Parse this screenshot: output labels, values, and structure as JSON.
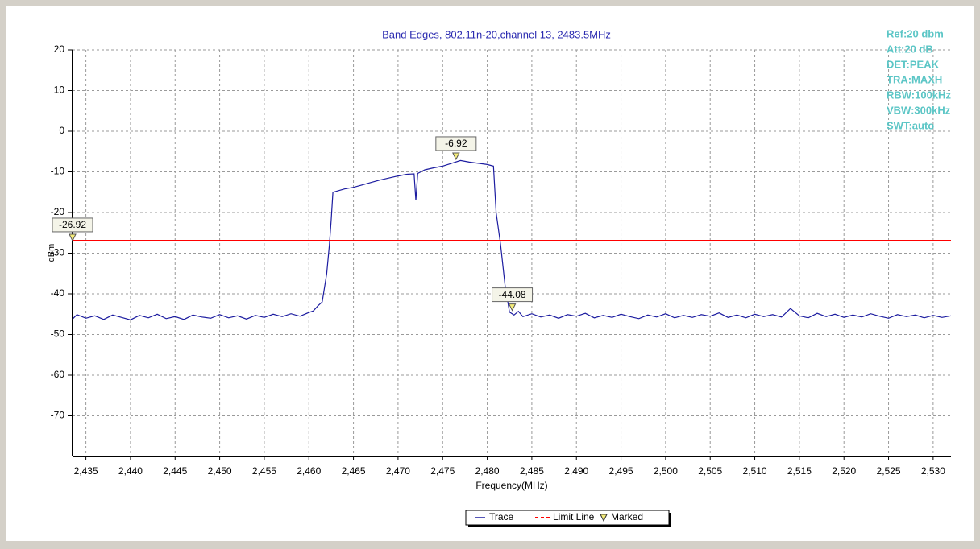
{
  "chart_data": {
    "type": "line",
    "title": "Band Edges, 802.11n-20,channel 13, 2483.5MHz",
    "xlabel": "Frequency(MHz)",
    "ylabel": "dBm",
    "info": [
      "Ref:20 dbm",
      "Att:20 dB",
      "DET:PEAK",
      "TRA:MAXH",
      "RBW:100kHz",
      "VBW:300kHz",
      "SWT:auto"
    ],
    "info_color": "#5cc6c6",
    "xlim": [
      2433.5,
      2532
    ],
    "ylim": [
      -80,
      20
    ],
    "xticks": [
      {
        "value": 2435,
        "label": "2,435"
      },
      {
        "value": 2440,
        "label": "2,440"
      },
      {
        "value": 2445,
        "label": "2,445"
      },
      {
        "value": 2450,
        "label": "2,450"
      },
      {
        "value": 2455,
        "label": "2,455"
      },
      {
        "value": 2460,
        "label": "2,460"
      },
      {
        "value": 2465,
        "label": "2,465"
      },
      {
        "value": 2470,
        "label": "2,470"
      },
      {
        "value": 2475,
        "label": "2,475"
      },
      {
        "value": 2480,
        "label": "2,480"
      },
      {
        "value": 2485,
        "label": "2,485"
      },
      {
        "value": 2490,
        "label": "2,490"
      },
      {
        "value": 2495,
        "label": "2,495"
      },
      {
        "value": 2500,
        "label": "2,500"
      },
      {
        "value": 2505,
        "label": "2,505"
      },
      {
        "value": 2510,
        "label": "2,510"
      },
      {
        "value": 2515,
        "label": "2,515"
      },
      {
        "value": 2520,
        "label": "2,520"
      },
      {
        "value": 2525,
        "label": "2,525"
      },
      {
        "value": 2530,
        "label": "2,530"
      }
    ],
    "yticks": [
      -70,
      -60,
      -50,
      -40,
      -30,
      -20,
      -10,
      0,
      10,
      20
    ],
    "grid": true,
    "x": [
      2433.5,
      2434,
      2435,
      2436,
      2437,
      2438,
      2439,
      2440,
      2441,
      2442,
      2443,
      2444,
      2445,
      2446,
      2447,
      2448,
      2449,
      2450,
      2451,
      2452,
      2453,
      2454,
      2455,
      2456,
      2457,
      2458,
      2459,
      2460,
      2460.5,
      2461,
      2461.5,
      2462,
      2462.3,
      2462.5,
      2462.7,
      2464,
      2465,
      2466,
      2467,
      2468,
      2469,
      2470,
      2471,
      2471.8,
      2472,
      2472.2,
      2473,
      2474,
      2475,
      2476,
      2477,
      2478,
      2479,
      2480,
      2480.7,
      2481,
      2481.5,
      2482,
      2482.5,
      2483,
      2483.5,
      2484,
      2485,
      2486,
      2487,
      2488,
      2489,
      2490,
      2491,
      2492,
      2493,
      2494,
      2495,
      2496,
      2497,
      2498,
      2499,
      2500,
      2501,
      2502,
      2503,
      2504,
      2505,
      2506,
      2507,
      2508,
      2509,
      2510,
      2511,
      2512,
      2513,
      2514,
      2515,
      2516,
      2517,
      2518,
      2519,
      2520,
      2521,
      2522,
      2523,
      2524,
      2525,
      2526,
      2527,
      2528,
      2529,
      2530,
      2531,
      2532
    ],
    "series": [
      {
        "name": "Trace",
        "color": "#1c1ca0",
        "values": [
          -46.2,
          -45.1,
          -46.0,
          -45.4,
          -46.3,
          -45.2,
          -45.8,
          -46.4,
          -45.3,
          -45.9,
          -45.0,
          -46.1,
          -45.6,
          -46.3,
          -45.2,
          -45.7,
          -46.0,
          -45.1,
          -45.9,
          -45.4,
          -46.2,
          -45.3,
          -45.8,
          -45.0,
          -45.6,
          -44.9,
          -45.5,
          -44.6,
          -44.2,
          -43.0,
          -42.0,
          -35,
          -28,
          -22,
          -15,
          -14.2,
          -13.8,
          -13.2,
          -12.6,
          -12.0,
          -11.5,
          -11.0,
          -10.6,
          -10.5,
          -17,
          -10.4,
          -9.5,
          -9.0,
          -8.6,
          -7.9,
          -7.2,
          -7.6,
          -7.9,
          -8.2,
          -8.6,
          -20,
          -28,
          -38,
          -44.5,
          -45.2,
          -44.3,
          -45.6,
          -44.9,
          -45.7,
          -45.2,
          -46.0,
          -45.1,
          -45.5,
          -44.8,
          -45.9,
          -45.3,
          -45.8,
          -45.0,
          -45.6,
          -46.1,
          -45.2,
          -45.7,
          -44.9,
          -45.9,
          -45.3,
          -45.8,
          -45.1,
          -45.5,
          -44.7,
          -45.8,
          -45.2,
          -45.9,
          -45.0,
          -45.6,
          -45.1,
          -45.7,
          -43.6,
          -45.4,
          -45.9,
          -44.8,
          -45.6,
          -45.0,
          -45.8,
          -45.2,
          -45.7,
          -44.9,
          -45.5,
          -46.0,
          -45.1,
          -45.6,
          -45.2,
          -45.9,
          -45.3,
          -45.8,
          -45.4
        ]
      }
    ],
    "limit_line": {
      "name": "Limit Line",
      "color": "#ff0000",
      "value": -26.92
    },
    "markers": {
      "name": "Marked",
      "color": "#f4ec7a",
      "x": [
        2433.5,
        2476.5,
        2482.8
      ],
      "values": [
        -26.92,
        -6.92,
        -44.08
      ]
    }
  }
}
